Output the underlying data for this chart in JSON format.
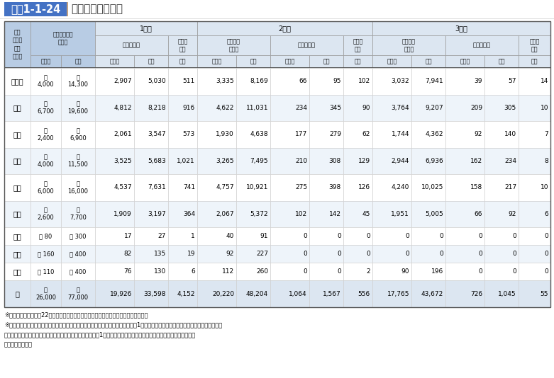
{
  "title": "図表1-1-24",
  "title_sub": "一時立入りの実績",
  "notes": [
    "※全体の数値は，平成22年度国勢調査及び各市町村データ（復旧計画等）からの概数。",
    "※マイカーを所有していない住民の方については，近所の住民の方等が同乗させて1台で複数世帯分の立入りを行うケースがあるため，",
    "　立入台数が立入世帯数より少なくなる場合がある。なお，1世帯が複数台の自動車で立入ることは認められていない。",
    "出典：内閣府資料"
  ],
  "rows": [
    {
      "city": "南相馬",
      "setai_approx": "約\n4,000",
      "hito_approx": "約\n14,300",
      "d1_setai": "2,907",
      "d1_hito": "5,030",
      "d1_dai": "511",
      "d2_mycar_setai": "3,335",
      "d2_mycar_hito": "8,169",
      "d2_bus_setai": "66",
      "d2_bus_hito": "95",
      "d2_dai": "102",
      "d3_mycar_setai": "3,032",
      "d3_mycar_hito": "7,941",
      "d3_bus_setai": "39",
      "d3_bus_hito": "57",
      "d3_dai": "14"
    },
    {
      "city": "浪江",
      "setai_approx": "約\n6,700",
      "hito_approx": "約\n19,600",
      "d1_setai": "4,812",
      "d1_hito": "8,218",
      "d1_dai": "916",
      "d2_mycar_setai": "4,622",
      "d2_mycar_hito": "11,031",
      "d2_bus_setai": "234",
      "d2_bus_hito": "345",
      "d2_dai": "90",
      "d3_mycar_setai": "3,764",
      "d3_mycar_hito": "9,207",
      "d3_bus_setai": "209",
      "d3_bus_hito": "305",
      "d3_dai": "10"
    },
    {
      "city": "双葉",
      "setai_approx": "約\n2,400",
      "hito_approx": "約\n6,900",
      "d1_setai": "2,061",
      "d1_hito": "3,547",
      "d1_dai": "573",
      "d2_mycar_setai": "1,930",
      "d2_mycar_hito": "4,638",
      "d2_bus_setai": "177",
      "d2_bus_hito": "279",
      "d2_dai": "62",
      "d3_mycar_setai": "1,744",
      "d3_mycar_hito": "4,362",
      "d3_bus_setai": "92",
      "d3_bus_hito": "140",
      "d3_dai": "7"
    },
    {
      "city": "大熊",
      "setai_approx": "約\n4,000",
      "hito_approx": "約\n11,500",
      "d1_setai": "3,525",
      "d1_hito": "5,683",
      "d1_dai": "1,021",
      "d2_mycar_setai": "3,265",
      "d2_mycar_hito": "7,495",
      "d2_bus_setai": "210",
      "d2_bus_hito": "308",
      "d2_dai": "129",
      "d3_mycar_setai": "2,944",
      "d3_mycar_hito": "6,936",
      "d3_bus_setai": "162",
      "d3_bus_hito": "234",
      "d3_dai": "8"
    },
    {
      "city": "富岡",
      "setai_approx": "約\n6,000",
      "hito_approx": "約\n16,000",
      "d1_setai": "4,537",
      "d1_hito": "7,631",
      "d1_dai": "741",
      "d2_mycar_setai": "4,757",
      "d2_mycar_hito": "10,921",
      "d2_bus_setai": "275",
      "d2_bus_hito": "398",
      "d2_dai": "126",
      "d3_mycar_setai": "4,240",
      "d3_mycar_hito": "10,025",
      "d3_bus_setai": "158",
      "d3_bus_hito": "217",
      "d3_dai": "10"
    },
    {
      "city": "楢葉",
      "setai_approx": "約\n2,600",
      "hito_approx": "約\n7,700",
      "d1_setai": "1,909",
      "d1_hito": "3,197",
      "d1_dai": "364",
      "d2_mycar_setai": "2,067",
      "d2_mycar_hito": "5,372",
      "d2_bus_setai": "102",
      "d2_bus_hito": "142",
      "d2_dai": "45",
      "d3_mycar_setai": "1,951",
      "d3_mycar_hito": "5,005",
      "d3_bus_setai": "66",
      "d3_bus_hito": "92",
      "d3_dai": "6"
    },
    {
      "city": "葛尾",
      "setai_approx": "約 80",
      "hito_approx": "約 300",
      "d1_setai": "17",
      "d1_hito": "27",
      "d1_dai": "1",
      "d2_mycar_setai": "40",
      "d2_mycar_hito": "91",
      "d2_bus_setai": "0",
      "d2_bus_hito": "0",
      "d2_dai": "0",
      "d3_mycar_setai": "0",
      "d3_mycar_hito": "0",
      "d3_bus_setai": "0",
      "d3_bus_hito": "0",
      "d3_dai": "0"
    },
    {
      "city": "川内",
      "setai_approx": "約 160",
      "hito_approx": "約 400",
      "d1_setai": "82",
      "d1_hito": "135",
      "d1_dai": "19",
      "d2_mycar_setai": "92",
      "d2_mycar_hito": "227",
      "d2_bus_setai": "0",
      "d2_bus_hito": "0",
      "d2_dai": "0",
      "d3_mycar_setai": "0",
      "d3_mycar_hito": "0",
      "d3_bus_setai": "0",
      "d3_bus_hito": "0",
      "d3_dai": "0"
    },
    {
      "city": "田村",
      "setai_approx": "約 110",
      "hito_approx": "約 400",
      "d1_setai": "76",
      "d1_hito": "130",
      "d1_dai": "6",
      "d2_mycar_setai": "112",
      "d2_mycar_hito": "260",
      "d2_bus_setai": "0",
      "d2_bus_hito": "0",
      "d2_dai": "2",
      "d3_mycar_setai": "90",
      "d3_mycar_hito": "196",
      "d3_bus_setai": "0",
      "d3_bus_hito": "0",
      "d3_dai": "0"
    },
    {
      "city": "計",
      "setai_approx": "約\n26,000",
      "hito_approx": "約\n77,000",
      "d1_setai": "19,926",
      "d1_hito": "33,598",
      "d1_dai": "4,152",
      "d2_mycar_setai": "20,220",
      "d2_mycar_hito": "48,204",
      "d2_bus_setai": "1,064",
      "d2_bus_hito": "1,567",
      "d2_dai": "556",
      "d3_mycar_setai": "17,765",
      "d3_mycar_hito": "43,672",
      "d3_bus_setai": "726",
      "d3_bus_hito": "1,045",
      "d3_dai": "55"
    }
  ]
}
